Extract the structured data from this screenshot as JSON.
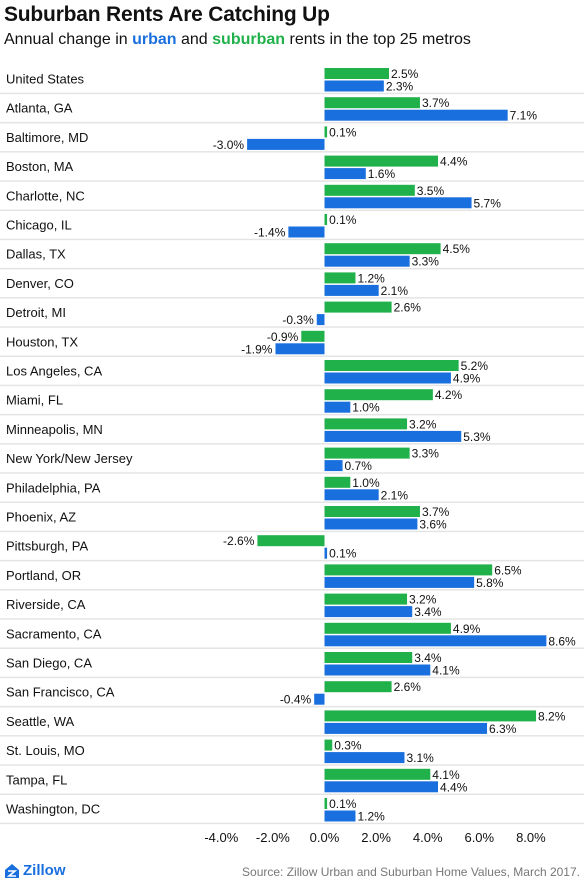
{
  "header": {
    "title": "Suburban Rents Are Catching Up",
    "subtitle_pre": "Annual change in ",
    "subtitle_urban": "urban",
    "subtitle_mid": " and ",
    "subtitle_suburban": "suburban",
    "subtitle_post": " rents in the top 25 metros"
  },
  "footer": {
    "brand": "Zillow",
    "brand_icon": "zillow-logo-icon",
    "source": "Source: Zillow Urban and Suburban Home Values, March 2017."
  },
  "colors": {
    "urban": "#1a6fdf",
    "suburban": "#21b14b",
    "band": "#e4e4e4"
  },
  "chart_data": {
    "type": "bar",
    "orientation": "horizontal",
    "categories": [
      "United States",
      "Atlanta, GA",
      "Baltimore, MD",
      "Boston, MA",
      "Charlotte, NC",
      "Chicago, IL",
      "Dallas, TX",
      "Denver, CO",
      "Detroit, MI",
      "Houston, TX",
      "Los Angeles, CA",
      "Miami, FL",
      "Minneapolis, MN",
      "New York/New Jersey",
      "Philadelphia, PA",
      "Phoenix, AZ",
      "Pittsburgh, PA",
      "Portland, OR",
      "Riverside, CA",
      "Sacramento, CA",
      "San Diego, CA",
      "San Francisco, CA",
      "Seattle, WA",
      "St. Louis, MO",
      "Tampa, FL",
      "Washington, DC"
    ],
    "series": [
      {
        "name": "suburban",
        "values": [
          2.5,
          3.7,
          0.1,
          4.4,
          3.5,
          0.1,
          4.5,
          1.2,
          2.6,
          -0.9,
          5.2,
          4.2,
          3.2,
          3.3,
          1.0,
          3.7,
          -2.6,
          6.5,
          3.2,
          4.9,
          3.4,
          2.6,
          8.2,
          0.3,
          4.1,
          0.1
        ]
      },
      {
        "name": "urban",
        "values": [
          2.3,
          7.1,
          -3.0,
          1.6,
          5.7,
          -1.4,
          3.3,
          2.1,
          -0.3,
          -1.9,
          4.9,
          1.0,
          5.3,
          0.7,
          2.1,
          3.6,
          0.1,
          5.8,
          3.4,
          8.6,
          4.1,
          -0.4,
          6.3,
          3.1,
          4.4,
          1.2
        ]
      }
    ],
    "labels": {
      "suburban": [
        "2.5%",
        "3.7%",
        "0.1%",
        "4.4%",
        "3.5%",
        "0.1%",
        "4.5%",
        "1.2%",
        "2.6%",
        "-0.9%",
        "5.2%",
        "4.2%",
        "3.2%",
        "3.3%",
        "1.0%",
        "3.7%",
        "-2.6%",
        "6.5%",
        "3.2%",
        "4.9%",
        "3.4%",
        "2.6%",
        "8.2%",
        "0.3%",
        "4.1%",
        "0.1%"
      ],
      "urban": [
        "2.3%",
        "7.1%",
        "-3.0%",
        "1.6%",
        "5.7%",
        "-1.4%",
        "3.3%",
        "2.1%",
        "-0.3%",
        "-1.9%",
        "4.9%",
        "1.0%",
        "5.3%",
        "0.7%",
        "2.1%",
        "3.6%",
        "0.1%",
        "5.8%",
        "3.4%",
        "8.6%",
        "4.1%",
        "-0.4%",
        "6.3%",
        "3.1%",
        "4.4%",
        "1.2%"
      ]
    },
    "xticks": [
      -4,
      -2,
      0,
      2,
      4,
      6,
      8
    ],
    "xtick_labels": [
      "-4.0%",
      "-2.0%",
      "0.0%",
      "2.0%",
      "4.0%",
      "6.0%",
      "8.0%"
    ],
    "xlim": [
      -5,
      9.5
    ],
    "grid": false,
    "legend": "in subtitle"
  }
}
